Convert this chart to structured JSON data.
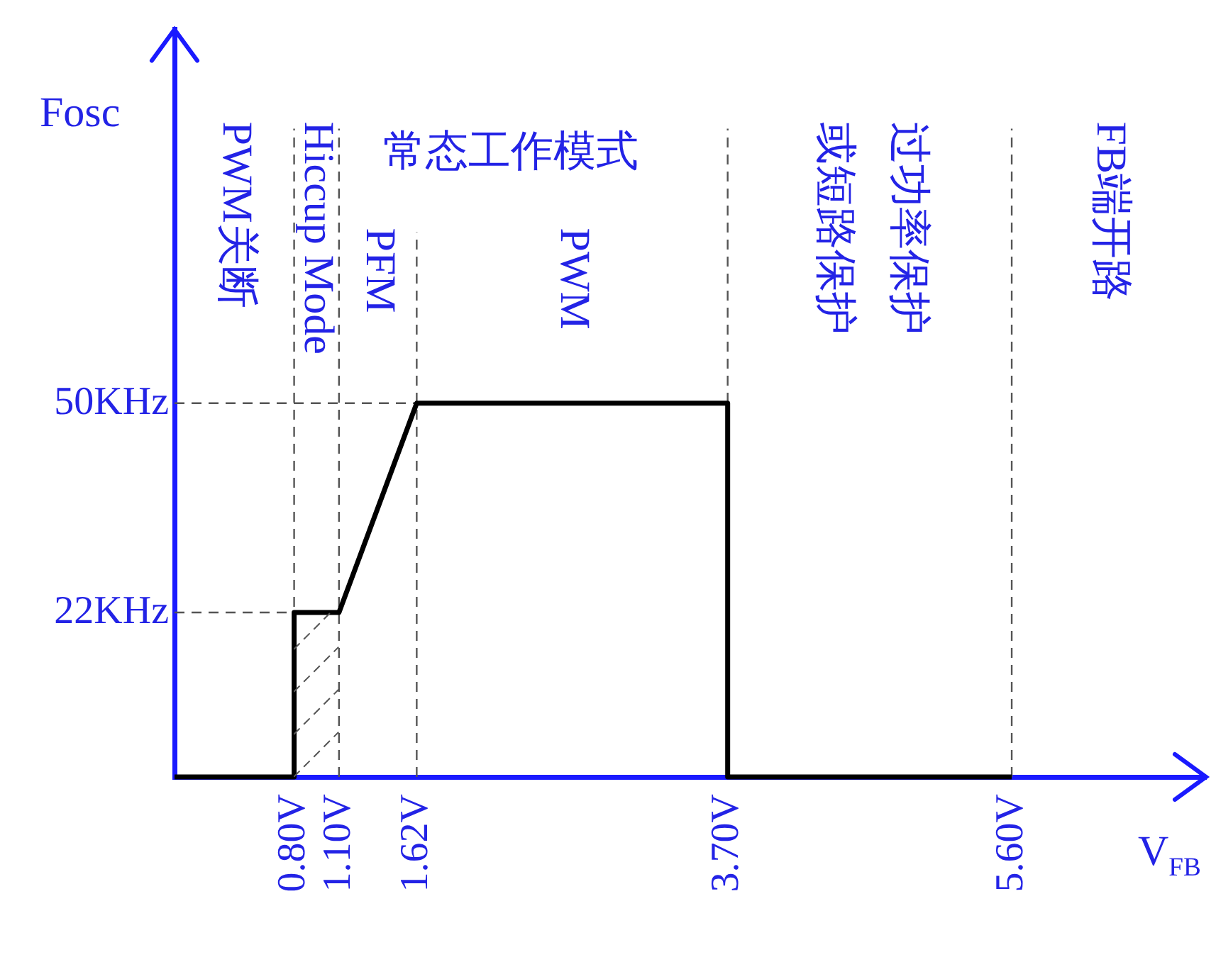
{
  "chart_data": {
    "type": "line",
    "xlabel": "V$_{FB}$",
    "ylabel": "Fosc",
    "x": [
      0,
      0.8,
      0.8,
      1.1,
      1.62,
      3.7,
      3.7,
      5.6
    ],
    "series": [
      {
        "color": "#000000",
        "values": [
          0,
          0,
          22,
          22,
          50,
          50,
          0,
          0
        ]
      }
    ],
    "xlim": [
      0,
      6.9
    ],
    "ylim": [
      0,
      100
    ],
    "xticks": [
      {
        "value": 0.8,
        "label": "0.80V"
      },
      {
        "value": 1.1,
        "label": "1.10V"
      },
      {
        "value": 1.62,
        "label": "1.62V"
      },
      {
        "value": 3.7,
        "label": "3.70V"
      },
      {
        "value": 5.6,
        "label": "5.60V"
      }
    ],
    "yticks": [
      {
        "value": 22,
        "label": "22KHz"
      },
      {
        "value": 50,
        "label": "50KHz"
      }
    ],
    "ref_lines": [
      {
        "axis": "x",
        "value": 0.8
      },
      {
        "axis": "x",
        "value": 1.1
      },
      {
        "axis": "x",
        "value": 1.62
      },
      {
        "axis": "x",
        "value": 3.7
      },
      {
        "axis": "x",
        "value": 5.6
      },
      {
        "axis": "y",
        "value": 22
      },
      {
        "axis": "y",
        "value": 50
      }
    ],
    "annotations": [
      "PWM关断",
      "Hiccup Mode",
      "常态工作模式",
      "PFM",
      "PWM",
      "过功率保护或短路保护",
      "FB端开路"
    ],
    "grid": false,
    "legend": false
  }
}
